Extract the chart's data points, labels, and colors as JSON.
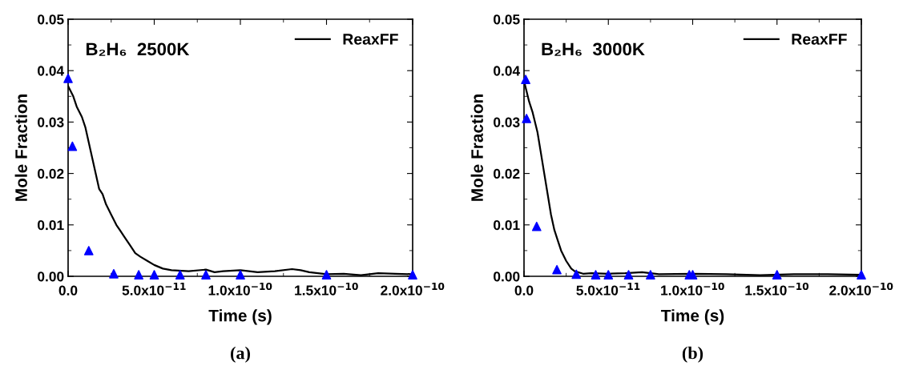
{
  "chart_data": [
    {
      "type": "line",
      "xlabel": "Time (s)",
      "ylabel": "Mole Fraction",
      "annotations": [
        "B₂H₆  2500K",
        "(a)"
      ],
      "xlim": [
        0,
        2e-10
      ],
      "ylim": [
        0,
        0.05
      ],
      "xticks": [
        {
          "value": 0,
          "label": "0.0"
        },
        {
          "value": 5e-11,
          "label": "5.0x10$^{−11}$"
        },
        {
          "value": 1e-10,
          "label": "1.0x10$^{−10}$"
        },
        {
          "value": 1.5e-10,
          "label": "1.5x10$^{−10}$"
        },
        {
          "value": 2e-10,
          "label": "2.0x10$^{−10}$"
        }
      ],
      "yticks": [
        {
          "value": 0,
          "label": "0.00"
        },
        {
          "value": 0.01,
          "label": "0.01"
        },
        {
          "value": 0.02,
          "label": "0.02"
        },
        {
          "value": 0.03,
          "label": "0.03"
        },
        {
          "value": 0.04,
          "label": "0.04"
        },
        {
          "value": 0.05,
          "label": "0.05"
        }
      ],
      "grid": false,
      "legend": "top right",
      "series": [
        {
          "name": "ReaxFF",
          "color": "#000000",
          "line_style": "solid",
          "marker": "none",
          "x": [
            0,
            3e-12,
            5e-12,
            8e-12,
            1e-11,
            1.2e-11,
            1.4e-11,
            1.6e-11,
            1.8e-11,
            2e-11,
            2.2e-11,
            2.5e-11,
            2.8e-11,
            3e-11,
            3.3e-11,
            3.6e-11,
            3.9e-11,
            4.2e-11,
            4.6e-11,
            5e-11,
            5.5e-11,
            6e-11,
            7e-11,
            8e-11,
            8.5e-11,
            9e-11,
            1e-10,
            1.1e-10,
            1.2e-10,
            1.3e-10,
            1.35e-10,
            1.4e-10,
            1.5e-10,
            1.6e-10,
            1.7e-10,
            1.8e-10,
            1.9e-10,
            2e-10
          ],
          "values": [
            0.037,
            0.035,
            0.033,
            0.031,
            0.029,
            0.026,
            0.023,
            0.02,
            0.017,
            0.016,
            0.014,
            0.012,
            0.01,
            0.009,
            0.0075,
            0.006,
            0.0045,
            0.0038,
            0.003,
            0.0022,
            0.0015,
            0.0012,
            0.001,
            0.0013,
            0.0008,
            0.001,
            0.0012,
            0.0008,
            0.001,
            0.0014,
            0.0012,
            0.0008,
            0.0004,
            0.0005,
            0.0002,
            0.0006,
            0.0005,
            0.0004
          ]
        },
        {
          "type": "scatter",
          "color": "#0000ff",
          "marker": "triangle",
          "x": [
            0,
            2.5e-12,
            1.2e-11,
            2.65e-11,
            4.1e-11,
            5e-11,
            6.5e-11,
            8e-11,
            1e-10,
            1.5e-10,
            2e-10
          ],
          "values": [
            0.0385,
            0.0253,
            0.005,
            0.0005,
            0.0003,
            0.0003,
            0.0003,
            0.0003,
            0.0003,
            0.0003,
            0.0003
          ]
        }
      ]
    },
    {
      "type": "line",
      "xlabel": "Time (s)",
      "ylabel": "Mole Fraction",
      "annotations": [
        "B₂H₆  3000K",
        "(b)"
      ],
      "xlim": [
        0,
        2e-10
      ],
      "ylim": [
        0,
        0.05
      ],
      "xticks": [
        {
          "value": 0,
          "label": "0.0"
        },
        {
          "value": 5e-11,
          "label": "5.0x10$^{−11}$"
        },
        {
          "value": 1e-10,
          "label": "1.0x10$^{−10}$"
        },
        {
          "value": 1.5e-10,
          "label": "1.5x10$^{−10}$"
        },
        {
          "value": 2e-10,
          "label": "2.0x10$^{−10}$"
        }
      ],
      "yticks": [
        {
          "value": 0,
          "label": "0.00"
        },
        {
          "value": 0.01,
          "label": "0.01"
        },
        {
          "value": 0.02,
          "label": "0.02"
        },
        {
          "value": 0.03,
          "label": "0.03"
        },
        {
          "value": 0.04,
          "label": "0.04"
        },
        {
          "value": 0.05,
          "label": "0.05"
        }
      ],
      "grid": false,
      "legend": "top right",
      "series": [
        {
          "name": "ReaxFF",
          "color": "#000000",
          "line_style": "solid",
          "marker": "none",
          "x": [
            0,
            3e-12,
            5e-12,
            8e-12,
            1e-11,
            1.2e-11,
            1.4e-11,
            1.6e-11,
            1.8e-11,
            2e-11,
            2.2e-11,
            2.5e-11,
            2.8e-11,
            3e-11,
            3.5e-11,
            4e-11,
            5e-11,
            6e-11,
            7e-11,
            8e-11,
            1e-10,
            1.2e-10,
            1.4e-10,
            1.6e-10,
            1.8e-10,
            2e-10
          ],
          "values": [
            0.038,
            0.034,
            0.032,
            0.028,
            0.024,
            0.02,
            0.016,
            0.012,
            0.009,
            0.007,
            0.005,
            0.003,
            0.0015,
            0.001,
            0.0005,
            0.0006,
            0.0005,
            0.0006,
            0.0008,
            0.0004,
            0.0005,
            0.0004,
            0.0002,
            0.0004,
            0.0004,
            0.0003
          ]
        },
        {
          "type": "scatter",
          "color": "#0000ff",
          "marker": "triangle",
          "x": [
            1e-12,
            1.5e-12,
            7.5e-12,
            1.95e-11,
            3.1e-11,
            4.25e-11,
            5e-11,
            6.2e-11,
            7.5e-11,
            9.8e-11,
            1e-10,
            1.5e-10,
            2e-10
          ],
          "values": [
            0.0383,
            0.0307,
            0.0097,
            0.0013,
            0.0004,
            0.0003,
            0.0003,
            0.0003,
            0.0003,
            0.0003,
            0.0003,
            0.0003,
            0.0003
          ]
        }
      ]
    }
  ]
}
